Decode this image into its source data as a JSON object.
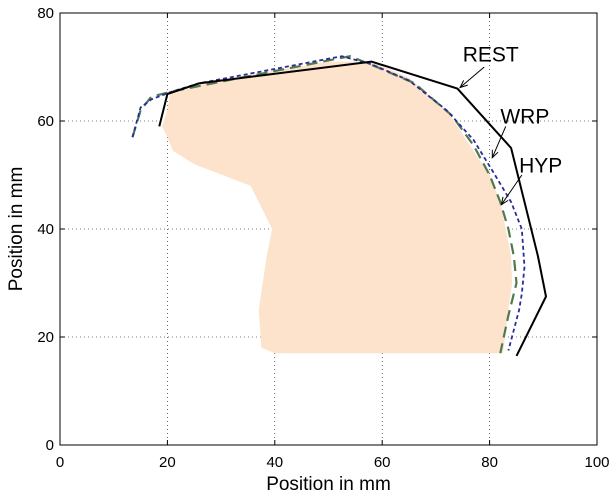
{
  "chart_data": {
    "type": "line",
    "title": "",
    "xlabel": "Position in mm",
    "ylabel": "Position in mm",
    "xlim": [
      0,
      100
    ],
    "ylim": [
      0,
      80
    ],
    "xticks": [
      0,
      20,
      40,
      60,
      80,
      100
    ],
    "yticks": [
      0,
      20,
      40,
      60,
      80
    ],
    "grid": true,
    "colors": {
      "region": "#fde3cc",
      "rest": "#000000",
      "wrp": "#2b2b9a",
      "hyp": "#4f7a4f"
    },
    "region": {
      "x": [
        19,
        20,
        20.5,
        22,
        26,
        50,
        58,
        65,
        72,
        76,
        80,
        82,
        83,
        84,
        84.2,
        83.5,
        82.5,
        70,
        40,
        37.5,
        37,
        38.5,
        39.5,
        37,
        35.5,
        25,
        21,
        20
      ],
      "y": [
        59,
        62,
        65,
        66,
        67,
        71,
        71,
        68,
        62,
        56,
        50,
        45,
        40,
        35,
        30,
        25,
        17,
        17,
        17,
        18,
        25,
        35,
        40,
        45,
        48,
        52,
        54.5,
        57
      ]
    },
    "series": [
      {
        "name": "REST",
        "x": [
          18.5,
          20,
          26,
          58,
          74,
          84,
          89,
          90.5,
          85
        ],
        "y": [
          59,
          65,
          67,
          71,
          66,
          55,
          35,
          27.5,
          16.5
        ]
      },
      {
        "name": "WRP",
        "x": [
          13.5,
          15,
          17,
          21,
          26,
          52.5,
          58,
          65,
          72,
          77,
          81,
          84,
          86,
          86.5,
          86,
          85.5,
          83.5
        ],
        "y": [
          57,
          62.5,
          64,
          65.5,
          67,
          72,
          70.5,
          67.5,
          62,
          56.5,
          50,
          45,
          40,
          33,
          28,
          25,
          17.5
        ]
      },
      {
        "name": "HYP",
        "x": [
          13.5,
          15,
          17,
          21,
          26,
          54,
          59,
          66,
          73,
          77,
          80,
          82,
          83.5,
          84.5,
          85,
          83.5,
          82
        ],
        "y": [
          57,
          62,
          64.5,
          65.5,
          66.5,
          72,
          70,
          67,
          61,
          55.5,
          50,
          45,
          40,
          35,
          30,
          24,
          17
        ]
      }
    ],
    "annotations": [
      {
        "text": "REST",
        "label_x": 75,
        "label_y": 71,
        "arrow_from": [
          79,
          70
        ],
        "arrow_to": [
          74.5,
          66.2
        ]
      },
      {
        "text": "WRP",
        "label_x": 82,
        "label_y": 59.5,
        "arrow_from": [
          83,
          59
        ],
        "arrow_to": [
          80.5,
          53.2
        ]
      },
      {
        "text": "HYP",
        "label_x": 85.5,
        "label_y": 50.5,
        "arrow_from": [
          86,
          50
        ],
        "arrow_to": [
          82.2,
          44.5
        ]
      }
    ]
  }
}
